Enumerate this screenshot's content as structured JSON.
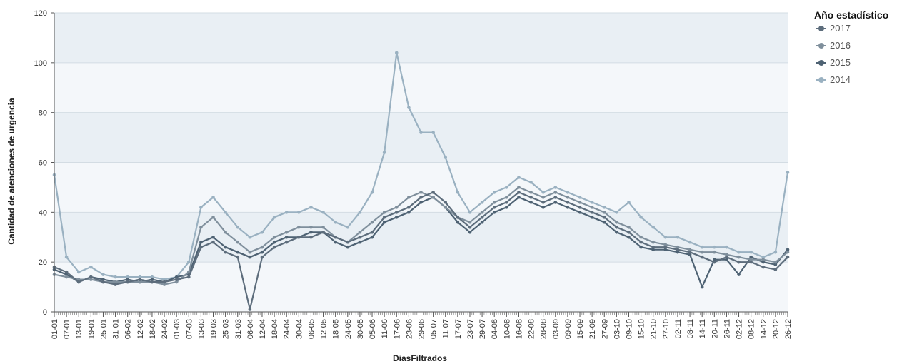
{
  "chart_data": {
    "type": "line",
    "xlabel": "DiasFiltrados",
    "ylabel": "Cantidad de atenciones de urgencia",
    "ylim": [
      0,
      120
    ],
    "yticks": [
      0,
      20,
      40,
      60,
      80,
      100,
      120
    ],
    "grid": true,
    "legend": {
      "title": "Año estadístico",
      "placement": "top-right"
    },
    "categories": [
      "01-01",
      "07-01",
      "13-01",
      "19-01",
      "25-01",
      "31-01",
      "06-02",
      "12-02",
      "18-02",
      "24-02",
      "01-03",
      "07-03",
      "13-03",
      "19-03",
      "25-03",
      "31-03",
      "06-04",
      "12-04",
      "18-04",
      "24-04",
      "30-04",
      "06-05",
      "12-05",
      "18-05",
      "24-05",
      "30-05",
      "05-06",
      "11-06",
      "17-06",
      "23-06",
      "29-06",
      "05-07",
      "11-07",
      "17-07",
      "23-07",
      "29-07",
      "04-08",
      "10-08",
      "16-08",
      "22-08",
      "28-08",
      "03-09",
      "09-09",
      "15-09",
      "21-09",
      "27-09",
      "03-10",
      "09-10",
      "15-10",
      "21-10",
      "27-10",
      "02-11",
      "08-11",
      "14-11",
      "20-11",
      "26-11",
      "02-12",
      "08-12",
      "14-12",
      "20-12",
      "26-12"
    ],
    "series": [
      {
        "name": "2017",
        "color": "#5d6d7c",
        "values": [
          18,
          16,
          12,
          14,
          12,
          11,
          12,
          13,
          12,
          12,
          13,
          14,
          26,
          28,
          24,
          22,
          1,
          22,
          26,
          28,
          30,
          30,
          32,
          30,
          28,
          30,
          32,
          38,
          40,
          42,
          46,
          48,
          44,
          38,
          34,
          38,
          42,
          44,
          48,
          46,
          44,
          46,
          44,
          42,
          40,
          38,
          34,
          32,
          28,
          26,
          26,
          25,
          24,
          22,
          20,
          22,
          20,
          20,
          18,
          17,
          22
        ]
      },
      {
        "name": "2016",
        "color": "#7f8f9c",
        "values": [
          15,
          14,
          13,
          13,
          12,
          12,
          12,
          12,
          12,
          11,
          12,
          16,
          34,
          38,
          32,
          28,
          24,
          26,
          30,
          32,
          34,
          34,
          34,
          30,
          28,
          32,
          36,
          40,
          42,
          46,
          48,
          46,
          42,
          38,
          36,
          40,
          44,
          46,
          50,
          48,
          46,
          48,
          46,
          44,
          42,
          40,
          36,
          34,
          30,
          28,
          27,
          26,
          25,
          24,
          24,
          23,
          22,
          21,
          21,
          20,
          24
        ]
      },
      {
        "name": "2015",
        "color": "#4e6273",
        "values": [
          17,
          15,
          12,
          14,
          13,
          12,
          13,
          12,
          13,
          12,
          14,
          15,
          28,
          30,
          26,
          24,
          22,
          24,
          28,
          30,
          30,
          32,
          32,
          28,
          26,
          28,
          30,
          36,
          38,
          40,
          44,
          46,
          42,
          36,
          32,
          36,
          40,
          42,
          46,
          44,
          42,
          44,
          42,
          40,
          38,
          36,
          32,
          30,
          26,
          25,
          25,
          24,
          23,
          10,
          21,
          21,
          15,
          22,
          20,
          19,
          25
        ]
      },
      {
        "name": "2014",
        "color": "#9ab1c1",
        "values": [
          55,
          22,
          16,
          18,
          15,
          14,
          14,
          14,
          14,
          13,
          14,
          20,
          42,
          46,
          40,
          34,
          30,
          32,
          38,
          40,
          40,
          42,
          40,
          36,
          34,
          40,
          48,
          64,
          104,
          82,
          72,
          72,
          62,
          48,
          40,
          44,
          48,
          50,
          54,
          52,
          48,
          50,
          48,
          46,
          44,
          42,
          40,
          44,
          38,
          34,
          30,
          30,
          28,
          26,
          26,
          26,
          24,
          24,
          22,
          24,
          56
        ]
      }
    ]
  }
}
